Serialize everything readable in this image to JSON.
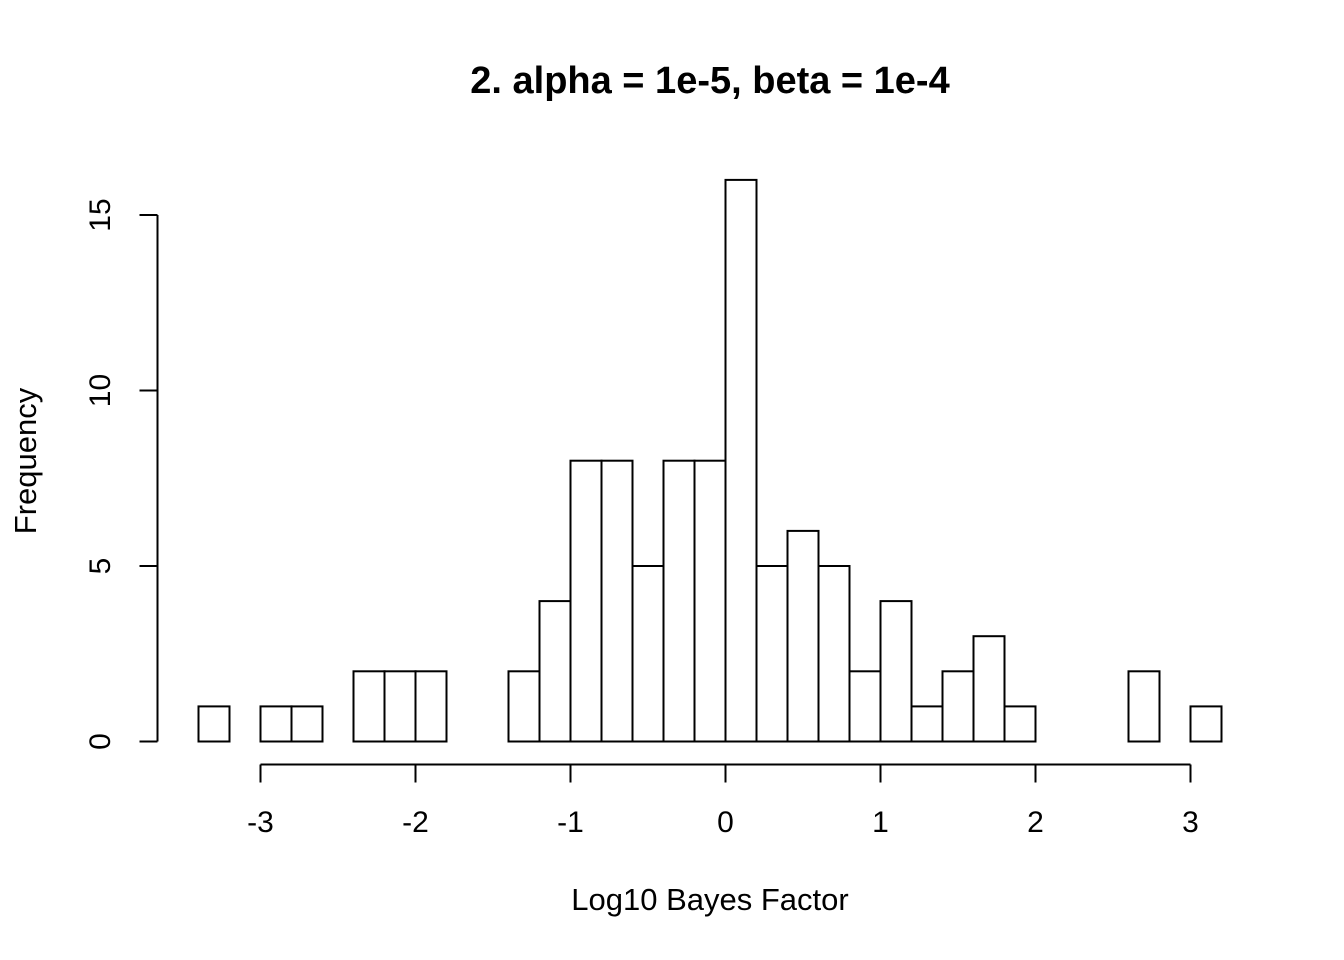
{
  "chart_data": {
    "type": "bar",
    "title": "2. alpha = 1e-5, beta = 1e-4",
    "xlabel": "Log10 Bayes Factor",
    "ylabel": "Frequency",
    "bin_width": 0.2,
    "bins": [
      {
        "x0": -3.4,
        "x1": -3.2,
        "count": 1
      },
      {
        "x0": -3.2,
        "x1": -3.0,
        "count": 0
      },
      {
        "x0": -3.0,
        "x1": -2.8,
        "count": 1
      },
      {
        "x0": -2.8,
        "x1": -2.6,
        "count": 1
      },
      {
        "x0": -2.6,
        "x1": -2.4,
        "count": 0
      },
      {
        "x0": -2.4,
        "x1": -2.2,
        "count": 2
      },
      {
        "x0": -2.2,
        "x1": -2.0,
        "count": 2
      },
      {
        "x0": -2.0,
        "x1": -1.8,
        "count": 2
      },
      {
        "x0": -1.8,
        "x1": -1.6,
        "count": 0
      },
      {
        "x0": -1.6,
        "x1": -1.4,
        "count": 0
      },
      {
        "x0": -1.4,
        "x1": -1.2,
        "count": 2
      },
      {
        "x0": -1.2,
        "x1": -1.0,
        "count": 4
      },
      {
        "x0": -1.0,
        "x1": -0.8,
        "count": 8
      },
      {
        "x0": -0.8,
        "x1": -0.6,
        "count": 8
      },
      {
        "x0": -0.6,
        "x1": -0.4,
        "count": 5
      },
      {
        "x0": -0.4,
        "x1": -0.2,
        "count": 8
      },
      {
        "x0": -0.2,
        "x1": 0.0,
        "count": 8
      },
      {
        "x0": 0.0,
        "x1": 0.2,
        "count": 16
      },
      {
        "x0": 0.2,
        "x1": 0.4,
        "count": 5
      },
      {
        "x0": 0.4,
        "x1": 0.6,
        "count": 6
      },
      {
        "x0": 0.6,
        "x1": 0.8,
        "count": 5
      },
      {
        "x0": 0.8,
        "x1": 1.0,
        "count": 2
      },
      {
        "x0": 1.0,
        "x1": 1.2,
        "count": 4
      },
      {
        "x0": 1.2,
        "x1": 1.4,
        "count": 1
      },
      {
        "x0": 1.4,
        "x1": 1.6,
        "count": 2
      },
      {
        "x0": 1.6,
        "x1": 1.8,
        "count": 3
      },
      {
        "x0": 1.8,
        "x1": 2.0,
        "count": 1
      },
      {
        "x0": 2.0,
        "x1": 2.2,
        "count": 0
      },
      {
        "x0": 2.2,
        "x1": 2.4,
        "count": 0
      },
      {
        "x0": 2.4,
        "x1": 2.6,
        "count": 0
      },
      {
        "x0": 2.6,
        "x1": 2.8,
        "count": 2
      },
      {
        "x0": 2.8,
        "x1": 3.0,
        "count": 0
      },
      {
        "x0": 3.0,
        "x1": 3.2,
        "count": 1
      }
    ],
    "xlim": [
      -3.4,
      3.2
    ],
    "ylim": [
      0,
      16
    ],
    "xticks": [
      -3,
      -2,
      -1,
      0,
      1,
      2,
      3
    ],
    "xtick_labels": [
      "-3",
      "-2",
      "-1",
      "0",
      "1",
      "2",
      "3"
    ],
    "yticks": [
      0,
      5,
      10,
      15
    ],
    "ytick_labels": [
      "0",
      "5",
      "10",
      "15"
    ],
    "grid": false,
    "legend": "none",
    "colors": {
      "bar_fill": "#ffffff",
      "bar_edge": "#000000"
    }
  }
}
